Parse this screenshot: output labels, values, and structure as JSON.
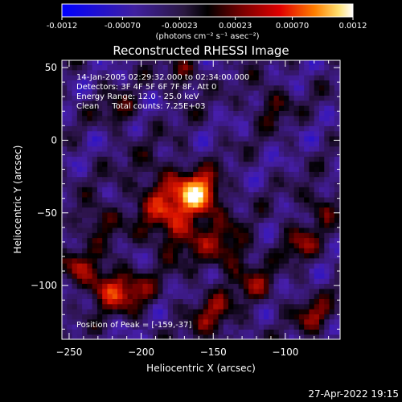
{
  "colorbar": {
    "ticks": [
      "-0.0012",
      "-0.00070",
      "-0.00023",
      "0.00023",
      "0.00070",
      "0.0012"
    ],
    "unit_label": "(photons cm⁻² s⁻¹ asec⁻²)",
    "range": [
      -0.0012,
      0.0012
    ]
  },
  "title": "Reconstructed RHESSI Image",
  "info": {
    "line1": "14-Jan-2005 02:29:32.000 to 02:34:00.000",
    "line2": "Detectors: 3F 4F 5F 6F 7F 8F, Att 0",
    "line3": "Energy Range: 12.0 - 25.0 keV",
    "line4": "Clean     Total counts: 7.25E+03",
    "peak": "Position of Peak = [-159,-37]"
  },
  "footer_timestamp": "27-Apr-2022 19:15",
  "chart_data": {
    "type": "heatmap",
    "title": "Reconstructed RHESSI Image",
    "xlabel": "Heliocentric X (arcsec)",
    "ylabel": "Heliocentric Y (arcsec)",
    "xlim": [
      -255,
      -62
    ],
    "ylim": [
      -137,
      55
    ],
    "xticks": [
      -250,
      -200,
      -150,
      -100
    ],
    "yticks": [
      50,
      0,
      -50,
      -100
    ],
    "peak": [
      -159,
      -37
    ],
    "sources": [
      {
        "x": -159,
        "y": -37,
        "sigma": 10,
        "amp": 1.0
      },
      {
        "x": -175,
        "y": -60,
        "sigma": 14,
        "amp": 0.55
      },
      {
        "x": -140,
        "y": -75,
        "sigma": 12,
        "amp": 0.5
      },
      {
        "x": -185,
        "y": -35,
        "sigma": 16,
        "amp": 0.45
      },
      {
        "x": -230,
        "y": -55,
        "sigma": 9,
        "amp": 0.45
      },
      {
        "x": -225,
        "y": -100,
        "sigma": 10,
        "amp": 0.7
      },
      {
        "x": -245,
        "y": -85,
        "sigma": 8,
        "amp": 0.45
      },
      {
        "x": -205,
        "y": -105,
        "sigma": 10,
        "amp": 0.5
      },
      {
        "x": -90,
        "y": -70,
        "sigma": 9,
        "amp": 0.5
      },
      {
        "x": -75,
        "y": -45,
        "sigma": 8,
        "amp": 0.45
      },
      {
        "x": -80,
        "y": -120,
        "sigma": 9,
        "amp": 0.5
      },
      {
        "x": -170,
        "y": 45,
        "sigma": 8,
        "amp": 0.45
      },
      {
        "x": -215,
        "y": 20,
        "sigma": 8,
        "amp": 0.4
      },
      {
        "x": -110,
        "y": 25,
        "sigma": 9,
        "amp": 0.4
      },
      {
        "x": -150,
        "y": -120,
        "sigma": 12,
        "amp": 0.45
      },
      {
        "x": -120,
        "y": -100,
        "sigma": 9,
        "amp": 0.4
      }
    ]
  }
}
